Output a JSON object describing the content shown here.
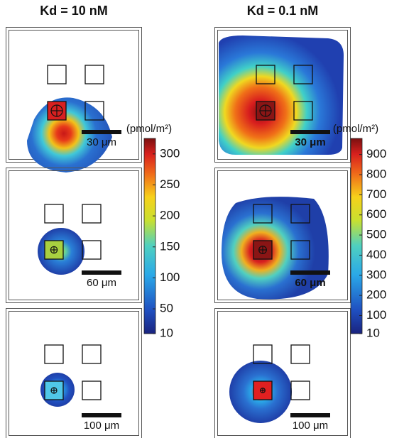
{
  "chart_data": [
    {
      "type": "heatmap",
      "title": "Kd = 10 nM",
      "colorbar": {
        "label": "(pmol/m²)",
        "lim": [
          10,
          325
        ],
        "ticks": [
          10,
          50,
          100,
          150,
          200,
          250,
          300
        ]
      },
      "panels": [
        {
          "scale_label": "30 μm"
        },
        {
          "scale_label": "60 μm"
        },
        {
          "scale_label": "100 μm"
        }
      ]
    },
    {
      "type": "heatmap",
      "title": "Kd = 0.1 nM",
      "colorbar": {
        "label": "(pmol/m²)",
        "lim": [
          10,
          980
        ],
        "ticks": [
          10,
          100,
          200,
          300,
          400,
          500,
          600,
          700,
          800,
          900
        ]
      },
      "panels": [
        {
          "scale_label": "30 μm"
        },
        {
          "scale_label": "60 μm"
        },
        {
          "scale_label": "100 μm"
        }
      ]
    }
  ]
}
